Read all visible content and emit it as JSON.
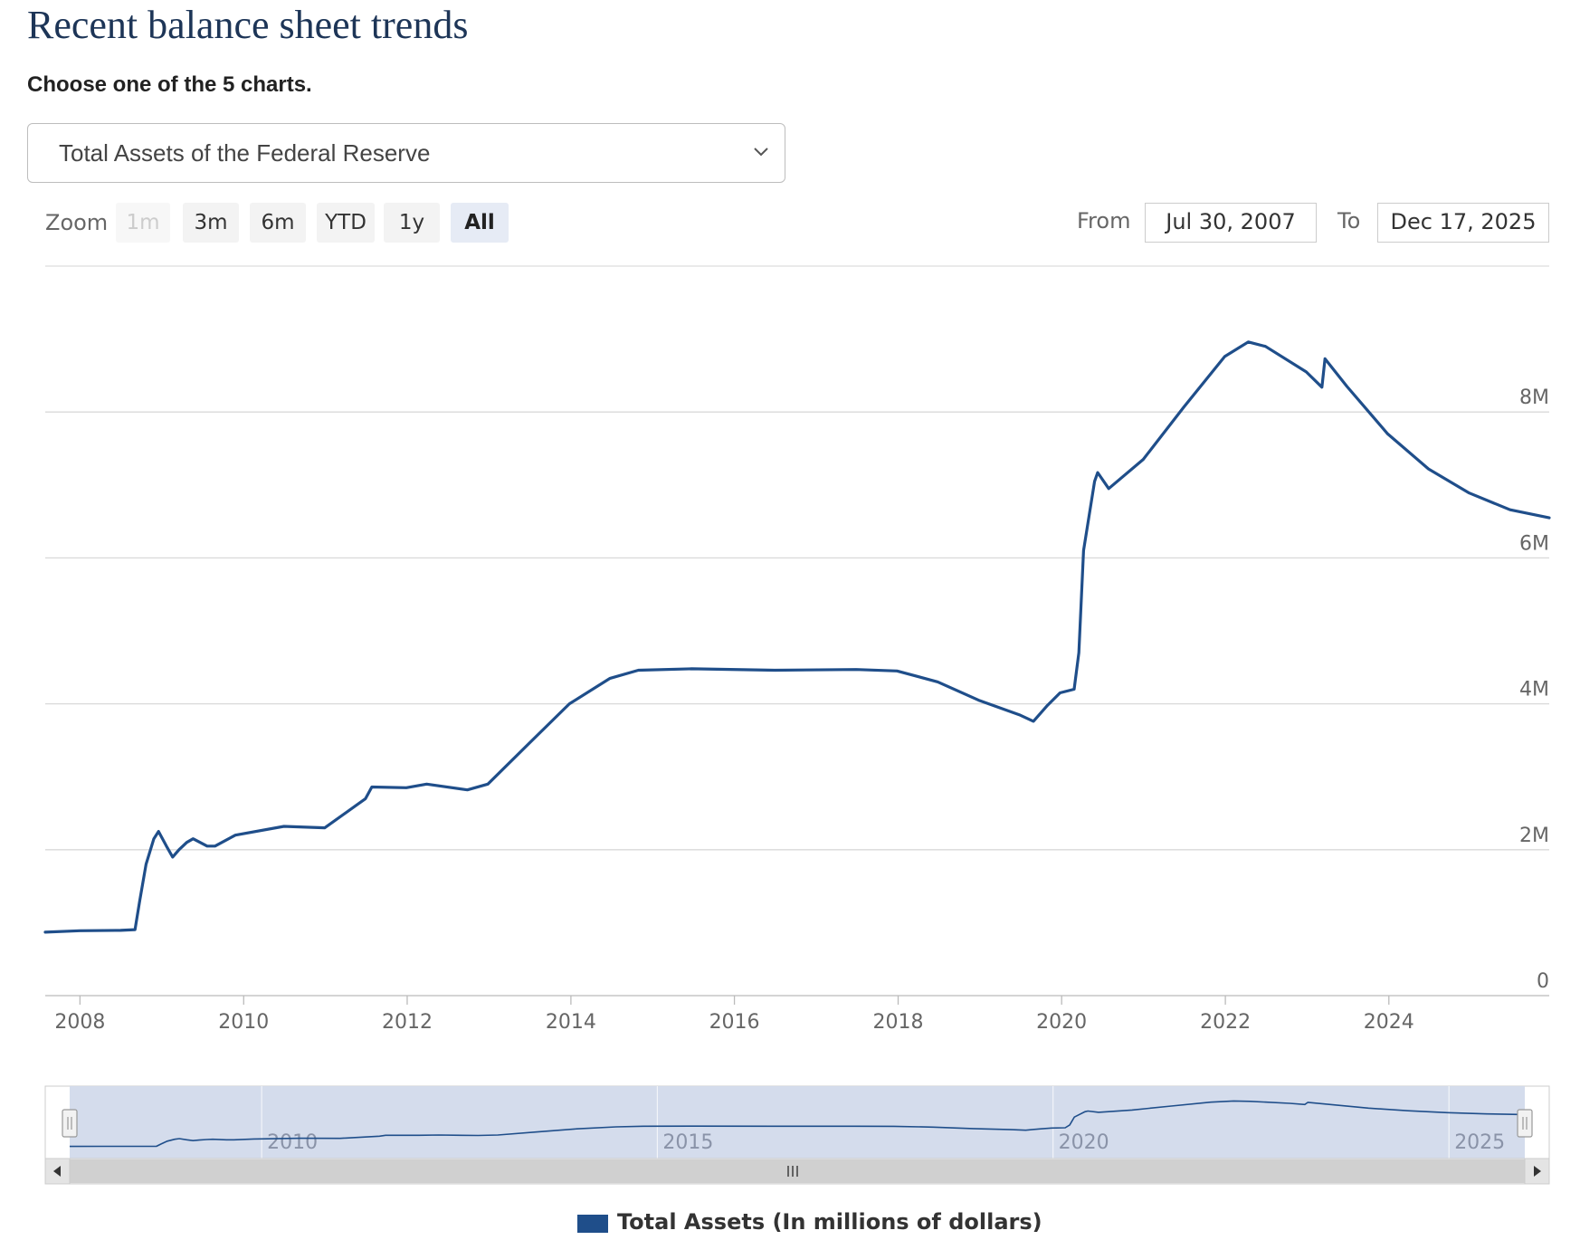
{
  "page": {
    "title": "Recent balance sheet trends",
    "subtitle": "Choose one of the 5 charts."
  },
  "selector": {
    "selected": "Total Assets of the Federal Reserve",
    "icon": "chevron-down-icon"
  },
  "zoom": {
    "label": "Zoom",
    "buttons": [
      {
        "label": "1m",
        "state": "disabled"
      },
      {
        "label": "3m",
        "state": "normal"
      },
      {
        "label": "6m",
        "state": "normal"
      },
      {
        "label": "YTD",
        "state": "normal"
      },
      {
        "label": "1y",
        "state": "normal"
      },
      {
        "label": "All",
        "state": "active"
      }
    ]
  },
  "range": {
    "from_label": "From",
    "from_value": "Jul 30, 2007",
    "to_label": "To",
    "to_value": "Dec 17, 2025"
  },
  "colors": {
    "series": "#1f4e8a",
    "grid": "#d9d9d9",
    "navigator_mask": "#cfd8ea",
    "scrollbar": "#d0d0d0"
  },
  "chart_data": {
    "type": "line",
    "title": "",
    "xlabel": "",
    "ylabel": "",
    "x_ticks": [
      "2008",
      "2010",
      "2012",
      "2014",
      "2016",
      "2018",
      "2020",
      "2022",
      "2024"
    ],
    "y_ticks": [
      "0",
      "2M",
      "4M",
      "6M",
      "8M"
    ],
    "y_tick_values": [
      0,
      2000000,
      4000000,
      6000000,
      8000000
    ],
    "xlim": [
      "2007-07-30",
      "2025-12-17"
    ],
    "ylim": [
      0,
      10000000
    ],
    "grid": true,
    "legend_position": "bottom",
    "series": [
      {
        "name": "Total Assets (In millions of dollars)",
        "color": "#1f4e8a",
        "points": [
          [
            "2007-07-30",
            870000
          ],
          [
            "2007-12-31",
            890000
          ],
          [
            "2008-06-30",
            895000
          ],
          [
            "2008-09-03",
            905000
          ],
          [
            "2008-09-24",
            1300000
          ],
          [
            "2008-10-22",
            1800000
          ],
          [
            "2008-11-26",
            2150000
          ],
          [
            "2008-12-17",
            2250000
          ],
          [
            "2009-01-21",
            2050000
          ],
          [
            "2009-02-18",
            1900000
          ],
          [
            "2009-03-18",
            2000000
          ],
          [
            "2009-04-22",
            2100000
          ],
          [
            "2009-05-20",
            2150000
          ],
          [
            "2009-07-22",
            2050000
          ],
          [
            "2009-08-26",
            2050000
          ],
          [
            "2009-11-25",
            2200000
          ],
          [
            "2010-06-30",
            2320000
          ],
          [
            "2010-12-29",
            2300000
          ],
          [
            "2011-06-29",
            2700000
          ],
          [
            "2011-07-27",
            2860000
          ],
          [
            "2011-12-28",
            2850000
          ],
          [
            "2012-03-28",
            2900000
          ],
          [
            "2012-09-26",
            2820000
          ],
          [
            "2012-12-26",
            2900000
          ],
          [
            "2013-06-26",
            3450000
          ],
          [
            "2013-12-25",
            4000000
          ],
          [
            "2014-06-25",
            4350000
          ],
          [
            "2014-10-29",
            4460000
          ],
          [
            "2015-06-24",
            4480000
          ],
          [
            "2016-06-29",
            4460000
          ],
          [
            "2017-06-28",
            4470000
          ],
          [
            "2017-12-27",
            4450000
          ],
          [
            "2018-06-27",
            4300000
          ],
          [
            "2018-12-26",
            4050000
          ],
          [
            "2019-06-26",
            3850000
          ],
          [
            "2019-08-28",
            3760000
          ],
          [
            "2019-10-30",
            3980000
          ],
          [
            "2019-12-25",
            4150000
          ],
          [
            "2020-02-26",
            4200000
          ],
          [
            "2020-03-18",
            4700000
          ],
          [
            "2020-04-08",
            6100000
          ],
          [
            "2020-05-27",
            7050000
          ],
          [
            "2020-06-10",
            7170000
          ],
          [
            "2020-07-29",
            6950000
          ],
          [
            "2020-12-30",
            7350000
          ],
          [
            "2021-06-30",
            8070000
          ],
          [
            "2021-12-29",
            8760000
          ],
          [
            "2022-04-13",
            8960000
          ],
          [
            "2022-06-29",
            8900000
          ],
          [
            "2022-12-28",
            8550000
          ],
          [
            "2023-03-08",
            8340000
          ],
          [
            "2023-03-22",
            8730000
          ],
          [
            "2023-06-28",
            8350000
          ],
          [
            "2023-12-27",
            7700000
          ],
          [
            "2024-06-26",
            7220000
          ],
          [
            "2024-12-25",
            6890000
          ],
          [
            "2025-06-25",
            6660000
          ],
          [
            "2025-12-17",
            6550000
          ]
        ]
      }
    ],
    "navigator": {
      "x_ticks": [
        "2010",
        "2015",
        "2020",
        "2025"
      ]
    }
  },
  "legend": {
    "label": "Total Assets (In millions of dollars)"
  },
  "scrollbar": {
    "left_arrow": "◂",
    "right_arrow": "▸",
    "grip": "III",
    "handle_grip": "||"
  }
}
